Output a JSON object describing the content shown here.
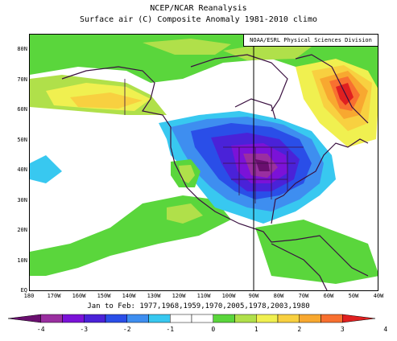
{
  "title_line1": "NCEP/NCAR Reanalysis",
  "title_line2": "Surface air (C) Composite Anomaly 1981-2010 climo",
  "credit": "NOAA/ESRL Physical Sciences Division",
  "lat_labels": [
    "80N",
    "70N",
    "60N",
    "50N",
    "40N",
    "30N",
    "20N",
    "10N",
    "EQ"
  ],
  "lon_labels": [
    "180",
    "170W",
    "160W",
    "150W",
    "140W",
    "130W",
    "120W",
    "110W",
    "100W",
    "90W",
    "80W",
    "70W",
    "60W",
    "50W",
    "40W"
  ],
  "dates_label": "Jan to Feb: 1977,1968,1959,1970,2005,1978,2003,1980",
  "colorbar": {
    "ticks": [
      "-4",
      "-3",
      "-2",
      "-1",
      "0",
      "1",
      "2",
      "3",
      "4"
    ],
    "colors": [
      "#6a0f6f",
      "#9a2fa0",
      "#7b12d8",
      "#4a22d8",
      "#2a4ee8",
      "#3e8ef0",
      "#38c8f0",
      "#ffffff",
      "#ffffff",
      "#5ad63c",
      "#b0e04a",
      "#f0f050",
      "#f8d040",
      "#f8a830",
      "#f87030",
      "#e02020"
    ]
  },
  "colors": {
    "frame": "#000000",
    "coast": "#3a1040"
  }
}
